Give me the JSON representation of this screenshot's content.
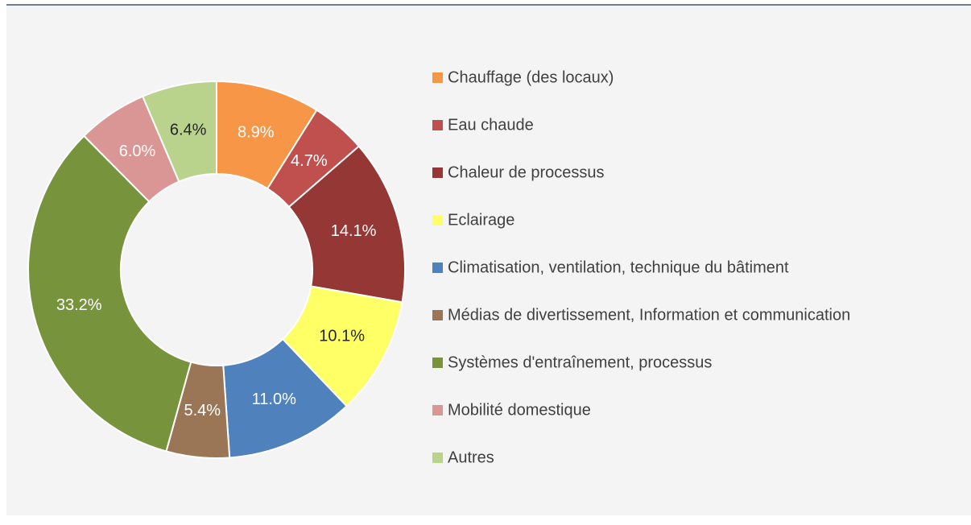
{
  "chart_data": {
    "type": "donut",
    "categories": [
      "Chauffage (des locaux)",
      "Eau chaude",
      "Chaleur de processus",
      "Eclairage",
      "Climatisation, ventilation, technique du bâtiment",
      "Médias de divertissement, Information et communication",
      "Systèmes d'entraînement, processus",
      "Mobilité domestique",
      "Autres"
    ],
    "values": [
      8.9,
      4.7,
      14.1,
      10.1,
      11.0,
      5.4,
      33.2,
      6.0,
      6.4
    ],
    "value_labels": [
      "8.9%",
      "4.7%",
      "14.1%",
      "10.1%",
      "11.0%",
      "5.4%",
      "33.2%",
      "6.0%",
      "6.4%"
    ],
    "colors": [
      "#f79646",
      "#c0504d",
      "#953735",
      "#ffff66",
      "#4f81bd",
      "#9a7556",
      "#77933c",
      "#d99694",
      "#b9d28c"
    ],
    "legend": "right"
  }
}
